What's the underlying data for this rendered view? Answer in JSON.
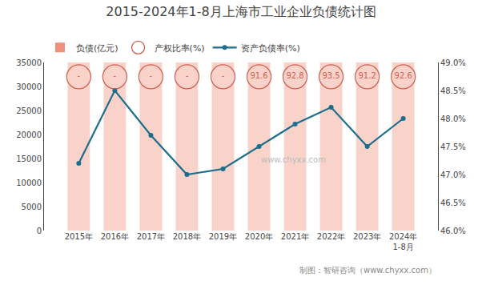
{
  "chart_data": {
    "type": "bar",
    "title": "2015-2024年1-8月上海市工业企业负债统计图",
    "categories": [
      "2015年",
      "2016年",
      "2017年",
      "2018年",
      "2019年",
      "2020年",
      "2021年",
      "2022年",
      "2023年",
      "2024年\n1-8月"
    ],
    "series": [
      {
        "name": "负债(亿元)",
        "type": "bar",
        "color": "#F0907A",
        "values": [
          35000,
          35000,
          35000,
          35000,
          35000,
          35000,
          35000,
          35000,
          35000,
          35000
        ]
      },
      {
        "name": "产权比率(%)",
        "type": "text",
        "color": "#D06050",
        "marker": "circle",
        "line_style": "dashed",
        "values": [
          null,
          null,
          null,
          null,
          null,
          91.6,
          92.8,
          93.5,
          91.2,
          92.6
        ],
        "value_labels": [
          "-",
          "-",
          "-",
          "-",
          "-",
          "91.6",
          "92.8",
          "93.5",
          "91.2",
          "92.6"
        ]
      },
      {
        "name": "资产负债率(%)",
        "type": "line",
        "color": "#1C6E8C",
        "marker": "circle",
        "axis": "y2",
        "values": [
          47.2,
          48.5,
          47.7,
          47.0,
          47.1,
          47.5,
          47.9,
          48.2,
          47.5,
          48.0
        ]
      }
    ],
    "ylim": [
      0,
      35000
    ],
    "yticks": [
      0,
      5000,
      10000,
      15000,
      20000,
      25000,
      30000,
      35000
    ],
    "y2lim": [
      46.0,
      49.0
    ],
    "y2ticks": [
      {
        "value": 46.0,
        "label": "46.0%"
      },
      {
        "value": 46.5,
        "label": "46.5%"
      },
      {
        "value": 47.0,
        "label": "47.0%"
      },
      {
        "value": 47.5,
        "label": "47.5%"
      },
      {
        "value": 48.0,
        "label": "48.0%"
      },
      {
        "value": 48.5,
        "label": "48.5%"
      },
      {
        "value": 49.0,
        "label": "49.0%"
      }
    ],
    "annotations": [
      "www.chyxx.com",
      "制图：智研咨询（www.chyxx.com）"
    ],
    "grid": false,
    "legend": "upper left"
  }
}
